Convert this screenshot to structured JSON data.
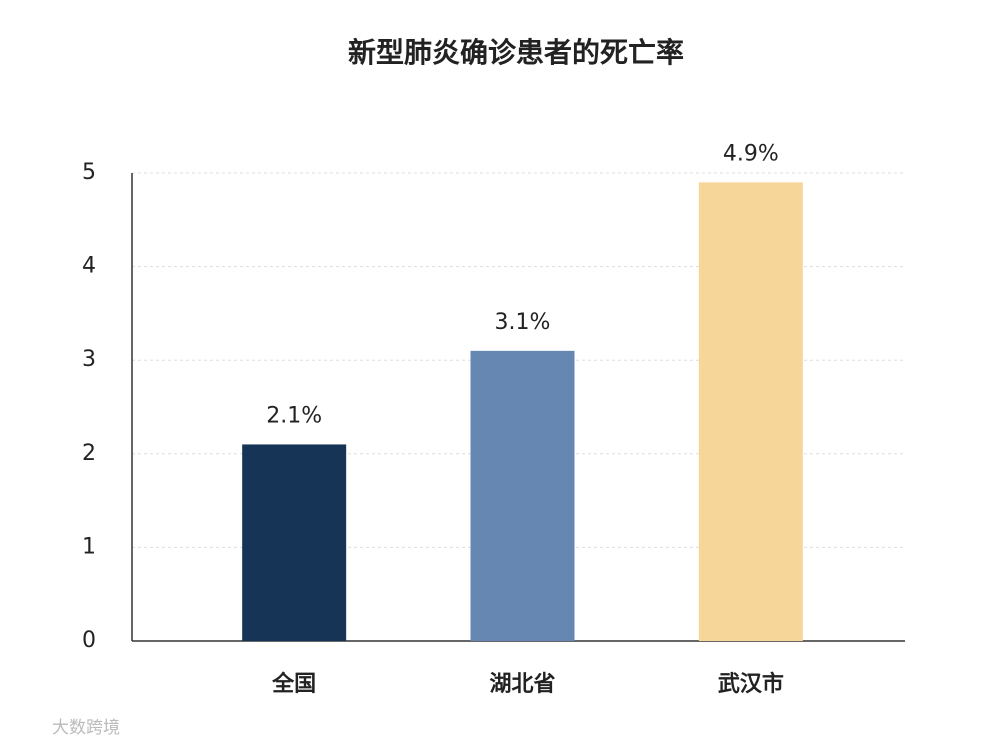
{
  "chart_data": {
    "type": "bar",
    "title": "新型肺炎确诊患者的死亡率",
    "categories": [
      "全国",
      "湖北省",
      "武汉市"
    ],
    "values": [
      2.1,
      3.1,
      4.9
    ],
    "value_labels": [
      "2.1%",
      "3.1%",
      "4.9%"
    ],
    "colors": [
      "#163556",
      "#6787b3",
      "#f7d699"
    ],
    "ylim": [
      0,
      5
    ],
    "yticks": [
      0,
      1,
      2,
      3,
      4,
      5
    ],
    "grid": true,
    "watermark": "大数跨境"
  }
}
